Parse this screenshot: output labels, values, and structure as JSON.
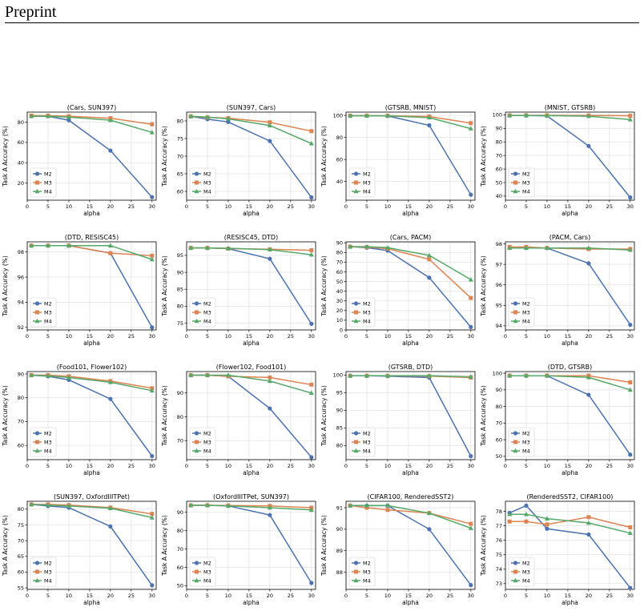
{
  "page": {
    "header_title": "Preprint"
  },
  "colors": {
    "M2": "#4c72b0",
    "M3": "#dd8452",
    "M4": "#55a868"
  },
  "chart_data": [
    {
      "type": "line",
      "title": "(Cars, SUN397)",
      "xlabel": "alpha",
      "ylabel": "Task A Accuracy (%)",
      "x": [
        1,
        5,
        10,
        20,
        30
      ],
      "xlim": [
        0,
        31
      ],
      "ylim": [
        3,
        90
      ],
      "yticks": [
        20,
        40,
        60,
        80
      ],
      "xticks": [
        0,
        5,
        10,
        15,
        20,
        25,
        30
      ],
      "grid": true,
      "legend": "lower-left",
      "series": [
        {
          "name": "M2",
          "marker": "circle",
          "values": [
            86,
            86,
            82,
            52,
            6
          ]
        },
        {
          "name": "M3",
          "marker": "square",
          "values": [
            86.5,
            86.5,
            86,
            84,
            78
          ]
        },
        {
          "name": "M4",
          "marker": "triangle",
          "values": [
            86,
            86,
            85,
            82,
            70
          ]
        }
      ]
    },
    {
      "type": "line",
      "title": "(SUN397, Cars)",
      "xlabel": "alpha",
      "ylabel": "Task A Accuracy (%)",
      "x": [
        1,
        5,
        10,
        20,
        30
      ],
      "xlim": [
        0,
        31
      ],
      "ylim": [
        57.5,
        82.5
      ],
      "yticks": [
        60,
        65,
        70,
        75,
        80
      ],
      "xticks": [
        0,
        5,
        10,
        15,
        20,
        25,
        30
      ],
      "grid": true,
      "legend": "lower-left",
      "series": [
        {
          "name": "M2",
          "marker": "circle",
          "values": [
            81.3,
            80.5,
            79.7,
            74.3,
            58.3
          ]
        },
        {
          "name": "M3",
          "marker": "square",
          "values": [
            81.3,
            81,
            80.8,
            79.6,
            77.1
          ]
        },
        {
          "name": "M4",
          "marker": "triangle",
          "values": [
            81.3,
            81.1,
            80.6,
            78.7,
            73.6
          ]
        }
      ]
    },
    {
      "type": "line",
      "title": "(GTSRB, MNIST)",
      "xlabel": "alpha",
      "ylabel": "Task A Accuracy (%)",
      "x": [
        1,
        5,
        10,
        20,
        30
      ],
      "xlim": [
        0,
        31
      ],
      "ylim": [
        23,
        103
      ],
      "yticks": [
        40,
        60,
        80,
        100
      ],
      "xticks": [
        0,
        5,
        10,
        15,
        20,
        25,
        30
      ],
      "grid": true,
      "legend": "lower-left",
      "series": [
        {
          "name": "M2",
          "marker": "circle",
          "values": [
            99.7,
            99.7,
            99.5,
            91,
            28
          ]
        },
        {
          "name": "M3",
          "marker": "square",
          "values": [
            99.7,
            99.7,
            99.7,
            99,
            93
          ]
        },
        {
          "name": "M4",
          "marker": "triangle",
          "values": [
            99.7,
            99.7,
            99.6,
            98,
            88
          ]
        }
      ]
    },
    {
      "type": "line",
      "title": "(MNIST, GTSRB)",
      "xlabel": "alpha",
      "ylabel": "Task A Accuracy (%)",
      "x": [
        1,
        5,
        10,
        20,
        30
      ],
      "xlim": [
        0,
        31
      ],
      "ylim": [
        37,
        102
      ],
      "yticks": [
        40,
        50,
        60,
        70,
        80,
        90,
        100
      ],
      "xticks": [
        0,
        5,
        10,
        15,
        20,
        25,
        30
      ],
      "grid": true,
      "legend": "lower-left",
      "series": [
        {
          "name": "M2",
          "marker": "circle",
          "values": [
            99.5,
            99.5,
            99.3,
            77,
            39
          ]
        },
        {
          "name": "M3",
          "marker": "square",
          "values": [
            99.6,
            99.6,
            99.6,
            99.5,
            99.3
          ]
        },
        {
          "name": "M4",
          "marker": "triangle",
          "values": [
            99.5,
            99.5,
            99.4,
            99,
            96.5
          ]
        }
      ]
    },
    {
      "type": "line",
      "title": "(DTD, RESISC45)",
      "xlabel": "alpha",
      "ylabel": "Task A Accuracy (%)",
      "x": [
        1,
        5,
        10,
        20,
        30
      ],
      "xlim": [
        0,
        31
      ],
      "ylim": [
        91.8,
        98.8
      ],
      "yticks": [
        92,
        94,
        96,
        98
      ],
      "xticks": [
        0,
        5,
        10,
        15,
        20,
        25,
        30
      ],
      "grid": true,
      "legend": "lower-left",
      "series": [
        {
          "name": "M2",
          "marker": "circle",
          "values": [
            98.5,
            98.5,
            98.5,
            97.9,
            92.0
          ]
        },
        {
          "name": "M3",
          "marker": "square",
          "values": [
            98.5,
            98.5,
            98.5,
            97.9,
            97.7
          ]
        },
        {
          "name": "M4",
          "marker": "triangle",
          "values": [
            98.5,
            98.5,
            98.5,
            98.5,
            97.4
          ]
        }
      ]
    },
    {
      "type": "line",
      "title": "(RESISC45, DTD)",
      "xlabel": "alpha",
      "ylabel": "Task A Accuracy (%)",
      "x": [
        1,
        5,
        10,
        20,
        30
      ],
      "xlim": [
        0,
        31
      ],
      "ylim": [
        73,
        99
      ],
      "yticks": [
        75,
        80,
        85,
        90,
        95
      ],
      "xticks": [
        0,
        5,
        10,
        15,
        20,
        25,
        30
      ],
      "grid": true,
      "legend": "lower-left",
      "series": [
        {
          "name": "M2",
          "marker": "circle",
          "values": [
            97.2,
            97.2,
            97,
            94,
            74.8
          ]
        },
        {
          "name": "M3",
          "marker": "square",
          "values": [
            97.2,
            97.2,
            97,
            96.8,
            96.5
          ]
        },
        {
          "name": "M4",
          "marker": "triangle",
          "values": [
            97.2,
            97.2,
            97.1,
            96.7,
            95.2
          ]
        }
      ]
    },
    {
      "type": "line",
      "title": "(Cars, PACM)",
      "xlabel": "alpha",
      "ylabel": "Task A Accuracy (%)",
      "x": [
        1,
        5,
        10,
        20,
        30
      ],
      "xlim": [
        0,
        31
      ],
      "ylim": [
        0,
        91
      ],
      "yticks": [
        0,
        10,
        20,
        30,
        40,
        50,
        60,
        70,
        80,
        90
      ],
      "xticks": [
        0,
        5,
        10,
        15,
        20,
        25,
        30
      ],
      "grid": true,
      "legend": "lower-left",
      "series": [
        {
          "name": "M2",
          "marker": "circle",
          "values": [
            86,
            85,
            82,
            54,
            3
          ]
        },
        {
          "name": "M3",
          "marker": "square",
          "values": [
            86,
            85.5,
            84,
            73,
            33
          ]
        },
        {
          "name": "M4",
          "marker": "triangle",
          "values": [
            86,
            86,
            85,
            77,
            52
          ]
        }
      ]
    },
    {
      "type": "line",
      "title": "(PACM, Cars)",
      "xlabel": "alpha",
      "ylabel": "Task A Accuracy (%)",
      "x": [
        1,
        5,
        10,
        20,
        30
      ],
      "xlim": [
        0,
        31
      ],
      "ylim": [
        93.8,
        98.1
      ],
      "yticks": [
        94,
        95,
        96,
        97,
        98
      ],
      "xticks": [
        0,
        5,
        10,
        15,
        20,
        25,
        30
      ],
      "grid": true,
      "legend": "lower-left",
      "series": [
        {
          "name": "M2",
          "marker": "circle",
          "values": [
            97.8,
            97.8,
            97.8,
            97.05,
            94.05
          ]
        },
        {
          "name": "M3",
          "marker": "square",
          "values": [
            97.85,
            97.85,
            97.8,
            97.75,
            97.75
          ]
        },
        {
          "name": "M4",
          "marker": "triangle",
          "values": [
            97.8,
            97.8,
            97.8,
            97.8,
            97.7
          ]
        }
      ]
    },
    {
      "type": "line",
      "title": "(Food101, Flower102)",
      "xlabel": "alpha",
      "ylabel": "Task A Accuracy (%)",
      "x": [
        1,
        5,
        10,
        20,
        30
      ],
      "xlim": [
        0,
        31
      ],
      "ylim": [
        54,
        91
      ],
      "yticks": [
        60,
        70,
        80,
        90
      ],
      "xticks": [
        0,
        5,
        10,
        15,
        20,
        25,
        30
      ],
      "grid": true,
      "legend": "lower-left",
      "series": [
        {
          "name": "M2",
          "marker": "circle",
          "values": [
            89.5,
            89,
            87.5,
            79.5,
            55.5
          ]
        },
        {
          "name": "M3",
          "marker": "square",
          "values": [
            89.5,
            89.5,
            89,
            87,
            84
          ]
        },
        {
          "name": "M4",
          "marker": "triangle",
          "values": [
            89.5,
            89.2,
            88.5,
            86.5,
            83
          ]
        }
      ]
    },
    {
      "type": "line",
      "title": "(Flower102, Food101)",
      "xlabel": "alpha",
      "ylabel": "Task A Accuracy (%)",
      "x": [
        1,
        5,
        10,
        20,
        30
      ],
      "xlim": [
        0,
        31
      ],
      "ylim": [
        62,
        99
      ],
      "yticks": [
        70,
        80,
        90
      ],
      "xticks": [
        0,
        5,
        10,
        15,
        20,
        25,
        30
      ],
      "grid": true,
      "legend": "lower-left",
      "series": [
        {
          "name": "M2",
          "marker": "circle",
          "values": [
            97.5,
            97.5,
            97,
            83.5,
            63
          ]
        },
        {
          "name": "M3",
          "marker": "square",
          "values": [
            97.5,
            97.5,
            97,
            96.5,
            93.5
          ]
        },
        {
          "name": "M4",
          "marker": "triangle",
          "values": [
            97.5,
            97.5,
            97.5,
            95,
            90
          ]
        }
      ]
    },
    {
      "type": "line",
      "title": "(GTSRB, DTD)",
      "xlabel": "alpha",
      "ylabel": "Task A Accuracy (%)",
      "x": [
        1,
        5,
        10,
        20,
        30
      ],
      "xlim": [
        0,
        31
      ],
      "ylim": [
        76,
        101
      ],
      "yticks": [
        80,
        85,
        90,
        95,
        100
      ],
      "xticks": [
        0,
        5,
        10,
        15,
        20,
        25,
        30
      ],
      "grid": true,
      "legend": "lower-left",
      "series": [
        {
          "name": "M2",
          "marker": "circle",
          "values": [
            99.8,
            99.8,
            99.7,
            99.3,
            77
          ]
        },
        {
          "name": "M3",
          "marker": "square",
          "values": [
            99.8,
            99.8,
            99.8,
            99.7,
            99.3
          ]
        },
        {
          "name": "M4",
          "marker": "triangle",
          "values": [
            99.8,
            99.8,
            99.8,
            99.8,
            99.5
          ]
        }
      ]
    },
    {
      "type": "line",
      "title": "(DTD, GTSRB)",
      "xlabel": "alpha",
      "ylabel": "Task A Accuracy (%)",
      "x": [
        1,
        5,
        10,
        20,
        30
      ],
      "xlim": [
        0,
        31
      ],
      "ylim": [
        48,
        101
      ],
      "yticks": [
        50,
        60,
        70,
        80,
        90,
        100
      ],
      "xticks": [
        0,
        5,
        10,
        15,
        20,
        25,
        30
      ],
      "grid": true,
      "legend": "lower-left",
      "series": [
        {
          "name": "M2",
          "marker": "circle",
          "values": [
            98.5,
            98.5,
            98.5,
            87,
            51
          ]
        },
        {
          "name": "M3",
          "marker": "square",
          "values": [
            98.5,
            98.5,
            98.5,
            98.5,
            94.5
          ]
        },
        {
          "name": "M4",
          "marker": "triangle",
          "values": [
            98.5,
            98.5,
            98.5,
            97.5,
            90
          ]
        }
      ]
    },
    {
      "type": "line",
      "title": "(SUN397, OxfordIIITPet)",
      "xlabel": "alpha",
      "ylabel": "Task A Accuracy (%)",
      "x": [
        1,
        5,
        10,
        20,
        30
      ],
      "xlim": [
        0,
        31
      ],
      "ylim": [
        54.5,
        82.5
      ],
      "yticks": [
        55,
        60,
        65,
        70,
        75,
        80
      ],
      "xticks": [
        0,
        5,
        10,
        15,
        20,
        25,
        30
      ],
      "grid": true,
      "legend": "lower-left",
      "series": [
        {
          "name": "M2",
          "marker": "circle",
          "values": [
            81.5,
            81,
            80.5,
            74.5,
            55.8
          ]
        },
        {
          "name": "M3",
          "marker": "square",
          "values": [
            81.5,
            81.5,
            81.3,
            80.5,
            78.5
          ]
        },
        {
          "name": "M4",
          "marker": "triangle",
          "values": [
            81.5,
            81.3,
            81,
            80.3,
            77.3
          ]
        }
      ]
    },
    {
      "type": "line",
      "title": "(OxfordIIITPet, SUN397)",
      "xlabel": "alpha",
      "ylabel": "Task A Accuracy (%)",
      "x": [
        1,
        5,
        10,
        20,
        30
      ],
      "xlim": [
        0,
        31
      ],
      "ylim": [
        48,
        96
      ],
      "yticks": [
        50,
        60,
        70,
        80,
        90
      ],
      "xticks": [
        0,
        5,
        10,
        15,
        20,
        25,
        30
      ],
      "grid": true,
      "legend": "lower-left",
      "series": [
        {
          "name": "M2",
          "marker": "circle",
          "values": [
            93.8,
            93.8,
            93.5,
            88.5,
            51.5
          ]
        },
        {
          "name": "M3",
          "marker": "square",
          "values": [
            93.8,
            93.8,
            93.7,
            93.5,
            92.5
          ]
        },
        {
          "name": "M4",
          "marker": "triangle",
          "values": [
            93.8,
            93.8,
            93.5,
            92.5,
            91.3
          ]
        }
      ]
    },
    {
      "type": "line",
      "title": "(CIFAR100, RenderedSST2)",
      "xlabel": "alpha",
      "ylabel": "Task A Accuracy (%)",
      "x": [
        1,
        5,
        10,
        20,
        30
      ],
      "xlim": [
        0,
        31
      ],
      "ylim": [
        87.2,
        91.3
      ],
      "yticks": [
        88,
        89,
        90,
        91
      ],
      "xticks": [
        0,
        5,
        10,
        15,
        20,
        25,
        30
      ],
      "grid": true,
      "legend": "lower-left",
      "series": [
        {
          "name": "M2",
          "marker": "circle",
          "values": [
            91.1,
            91.1,
            91.1,
            90.0,
            87.4
          ]
        },
        {
          "name": "M3",
          "marker": "square",
          "values": [
            91.1,
            91.0,
            90.9,
            90.75,
            90.25
          ]
        },
        {
          "name": "M4",
          "marker": "triangle",
          "values": [
            91.1,
            91.1,
            91.1,
            90.75,
            90.05
          ]
        }
      ]
    },
    {
      "type": "line",
      "title": "(RenderedSST2, CIFAR100)",
      "xlabel": "alpha",
      "ylabel": "Task A Accuracy (%)",
      "x": [
        1,
        5,
        10,
        20,
        30
      ],
      "xlim": [
        0,
        31
      ],
      "ylim": [
        72.6,
        78.7
      ],
      "yticks": [
        73,
        74,
        75,
        76,
        77,
        78
      ],
      "xticks": [
        0,
        5,
        10,
        15,
        20,
        25,
        30
      ],
      "grid": true,
      "legend": "lower-left",
      "series": [
        {
          "name": "M2",
          "marker": "circle",
          "values": [
            77.9,
            78.4,
            76.8,
            76.4,
            72.7
          ]
        },
        {
          "name": "M3",
          "marker": "square",
          "values": [
            77.3,
            77.3,
            77.1,
            77.6,
            76.9
          ]
        },
        {
          "name": "M4",
          "marker": "triangle",
          "values": [
            77.8,
            77.8,
            77.5,
            77.2,
            76.5
          ]
        }
      ]
    }
  ]
}
